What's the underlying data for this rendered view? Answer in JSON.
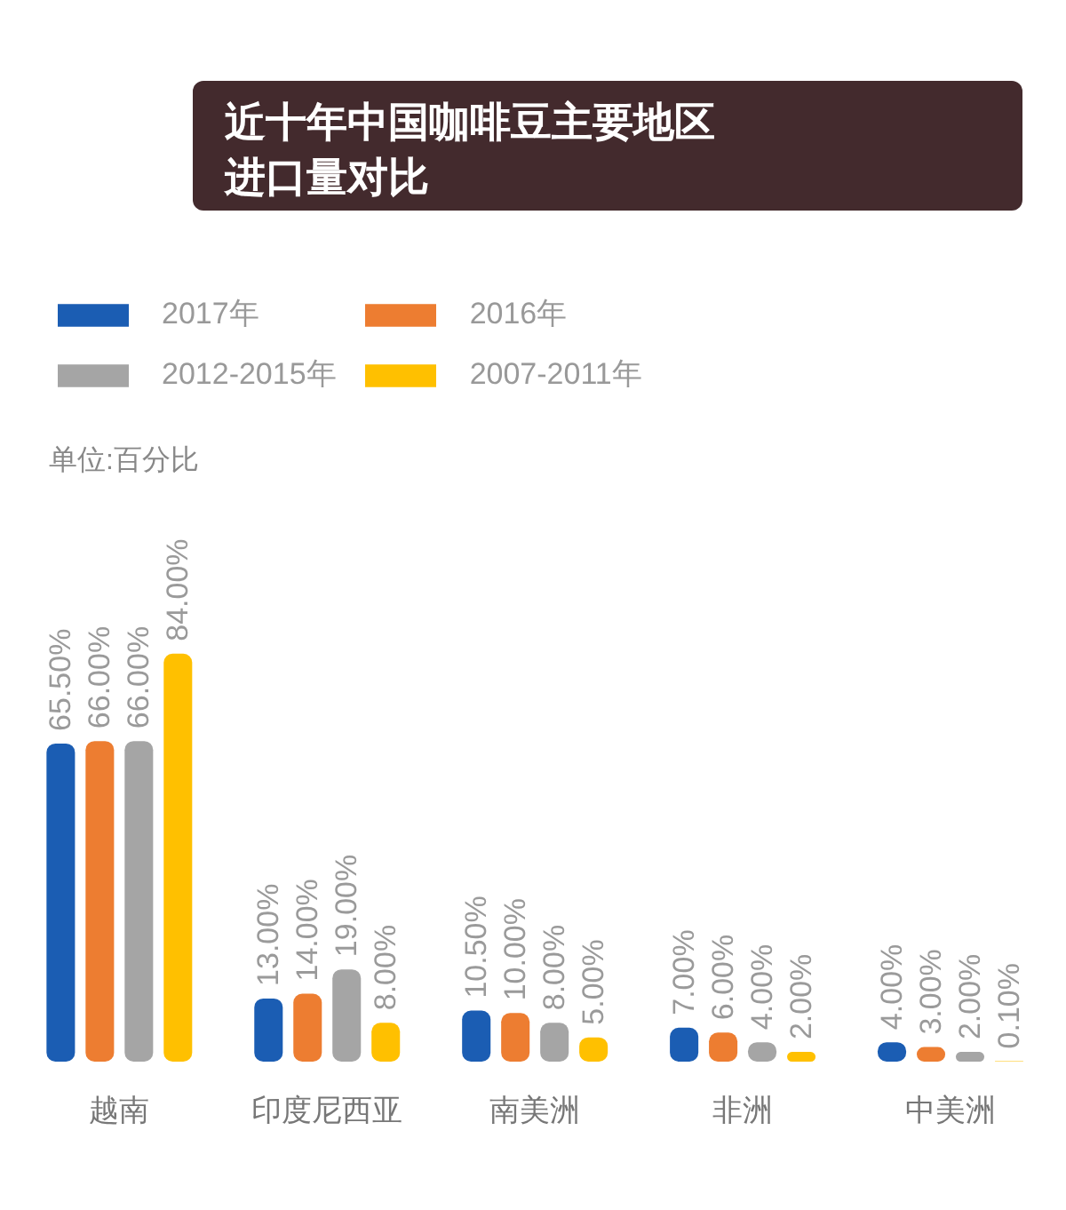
{
  "chart_data": {
    "type": "bar",
    "title": "近十年中国咖啡豆主要地区进口量对比",
    "annotations": [
      "单位:百分比"
    ],
    "categories": [
      "越南",
      "印度尼西亚",
      "南美洲",
      "非洲",
      "中美洲"
    ],
    "series": [
      {
        "name": "2017年",
        "color": "#1b5db3",
        "values": [
          65.5,
          13,
          10.5,
          7,
          4
        ],
        "value_labels": [
          "65.50%",
          "13.00%",
          "10.50%",
          "7.00%",
          "4.00%"
        ]
      },
      {
        "name": "2016年",
        "color": "#ed7d31",
        "values": [
          66,
          14,
          10,
          6,
          3
        ],
        "value_labels": [
          "66.00%",
          "14.00%",
          "10.00%",
          "6.00%",
          "3.00%"
        ]
      },
      {
        "name": "2012-2015年",
        "color": "#a5a5a5",
        "values": [
          66,
          19,
          8,
          4,
          2
        ],
        "value_labels": [
          "66.00%",
          "19.00%",
          "8.00%",
          "4.00%",
          "2.00%"
        ]
      },
      {
        "name": "2007-2011年",
        "color": "#ffc000",
        "values": [
          84,
          8,
          5,
          2,
          0.1
        ],
        "value_labels": [
          "84.00%",
          "8.00%",
          "5.00%",
          "2.00%",
          "0.10%"
        ]
      }
    ],
    "legend": "top left"
  }
}
